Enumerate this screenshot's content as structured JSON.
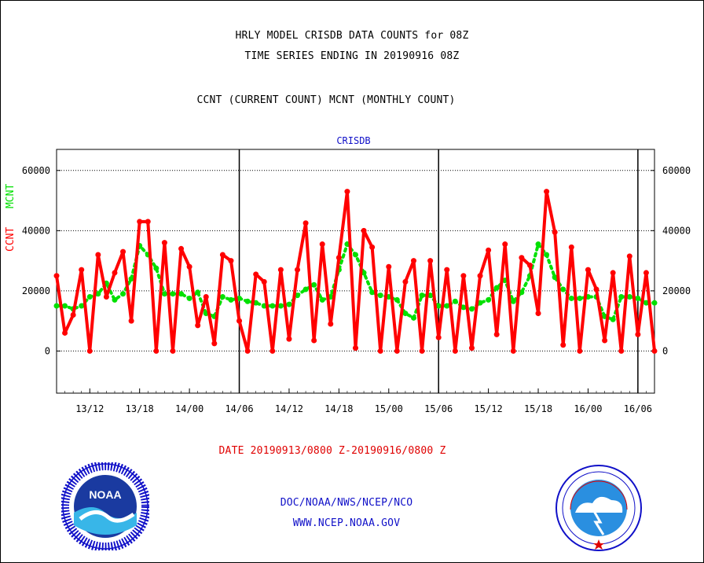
{
  "titles": {
    "line1": "HRLY MODEL CRISDB DATA COUNTS for 08Z",
    "line2": "TIME SERIES ENDING IN 20190916 08Z",
    "line3": "CCNT (CURRENT COUNT) MCNT (MONTHLY COUNT)",
    "panel": "CRISDB"
  },
  "ylabel": {
    "ccnt": "CCNT",
    "mcnt": "MCNT"
  },
  "date_range": "DATE 20190913/0800 Z-20190916/0800 Z",
  "credits": {
    "line1": "DOC/NOAA/NWS/NCEP/NCO",
    "line2": "WWW.NCEP.NOAA.GOV"
  },
  "logos": {
    "left": "noaa-logo",
    "right": "national-weather-service-logo"
  },
  "colors": {
    "ccnt": "#ff0000",
    "mcnt": "#00e000",
    "text_blue": "#1010c8"
  },
  "chart_data": {
    "type": "line",
    "title": "CRISDB",
    "xlabel": "DATE 20190913/0800 Z-20190916/0800 Z",
    "ylabel": "CCNT  MCNT",
    "ylim": [
      -14000,
      67000
    ],
    "yticks": [
      0,
      20000,
      40000,
      60000
    ],
    "ytick_labels": [
      "0",
      "20000",
      "40000",
      "60000"
    ],
    "xlim": [
      0,
      72
    ],
    "xticks": [
      4,
      10,
      16,
      22,
      28,
      34,
      40,
      46,
      52,
      58,
      64,
      70
    ],
    "xtick_labels": [
      "13/12",
      "13/18",
      "14/00",
      "14/06",
      "14/12",
      "14/18",
      "15/00",
      "15/06",
      "15/12",
      "15/18",
      "16/00",
      "16/06"
    ],
    "day_boundaries": [
      22,
      46,
      70
    ],
    "grid": "horizontal dotted",
    "series": [
      {
        "name": "CCNT",
        "color": "#ff0000",
        "x": [
          0,
          1,
          2,
          3,
          4,
          5,
          6,
          7,
          8,
          9,
          10,
          11,
          12,
          13,
          14,
          15,
          16,
          17,
          18,
          19,
          20,
          21,
          22,
          23,
          24,
          25,
          26,
          27,
          28,
          29,
          30,
          31,
          32,
          33,
          34,
          35,
          36,
          37,
          38,
          39,
          40,
          41,
          42,
          43,
          44,
          45,
          46,
          47,
          48,
          49,
          50,
          51,
          52,
          53,
          54,
          55,
          56,
          57,
          58,
          59,
          60,
          61,
          62,
          63,
          64,
          65,
          66,
          67,
          68,
          69,
          70,
          71,
          72
        ],
        "values": [
          25000,
          6000,
          12000,
          27000,
          0,
          32000,
          18000,
          26000,
          33000,
          10000,
          43000,
          43000,
          0,
          36000,
          0,
          34000,
          28000,
          8500,
          18000,
          2500,
          32000,
          30000,
          10000,
          0,
          25500,
          23000,
          0,
          27000,
          4000,
          27000,
          42500,
          3500,
          35500,
          9000,
          31000,
          53000,
          1000,
          40000,
          34500,
          0,
          28000,
          0,
          23000,
          30000,
          0,
          30000,
          4500,
          27000,
          0,
          25000,
          1000,
          25000,
          33500,
          5500,
          35500,
          0,
          31000,
          28500,
          12500,
          53000,
          39500,
          2000,
          34500,
          0,
          27000,
          20500,
          3500,
          26000,
          0,
          31500,
          5500,
          26000,
          0
        ]
      },
      {
        "name": "MCNT",
        "color": "#00e000",
        "x": [
          0,
          1,
          2,
          3,
          4,
          5,
          6,
          7,
          8,
          9,
          10,
          11,
          12,
          13,
          14,
          15,
          16,
          17,
          18,
          19,
          20,
          21,
          22,
          23,
          24,
          25,
          26,
          27,
          28,
          29,
          30,
          31,
          32,
          33,
          34,
          35,
          36,
          37,
          38,
          39,
          40,
          41,
          42,
          43,
          44,
          45,
          46,
          47,
          48,
          49,
          50,
          51,
          52,
          53,
          54,
          55,
          56,
          57,
          58,
          59,
          60,
          61,
          62,
          63,
          64,
          65,
          66,
          67,
          68,
          69,
          70,
          71,
          72
        ],
        "values": [
          15000,
          15000,
          14000,
          15000,
          18000,
          19000,
          22500,
          17000,
          19000,
          24000,
          35000,
          32000,
          27500,
          19000,
          19000,
          19000,
          17500,
          19500,
          12500,
          11500,
          18000,
          17000,
          17500,
          16500,
          16000,
          15000,
          15000,
          15000,
          15500,
          18500,
          20500,
          22000,
          17000,
          18000,
          27000,
          35500,
          32000,
          26000,
          19500,
          18500,
          18000,
          17000,
          12500,
          11000,
          18500,
          18500,
          15000,
          15000,
          16500,
          14500,
          14000,
          16000,
          17000,
          21000,
          23500,
          16500,
          19500,
          25000,
          35500,
          32000,
          24500,
          20500,
          17500,
          17500,
          18000,
          18000,
          11500,
          10500,
          18000,
          18000,
          17500,
          16000,
          16000
        ]
      }
    ]
  }
}
